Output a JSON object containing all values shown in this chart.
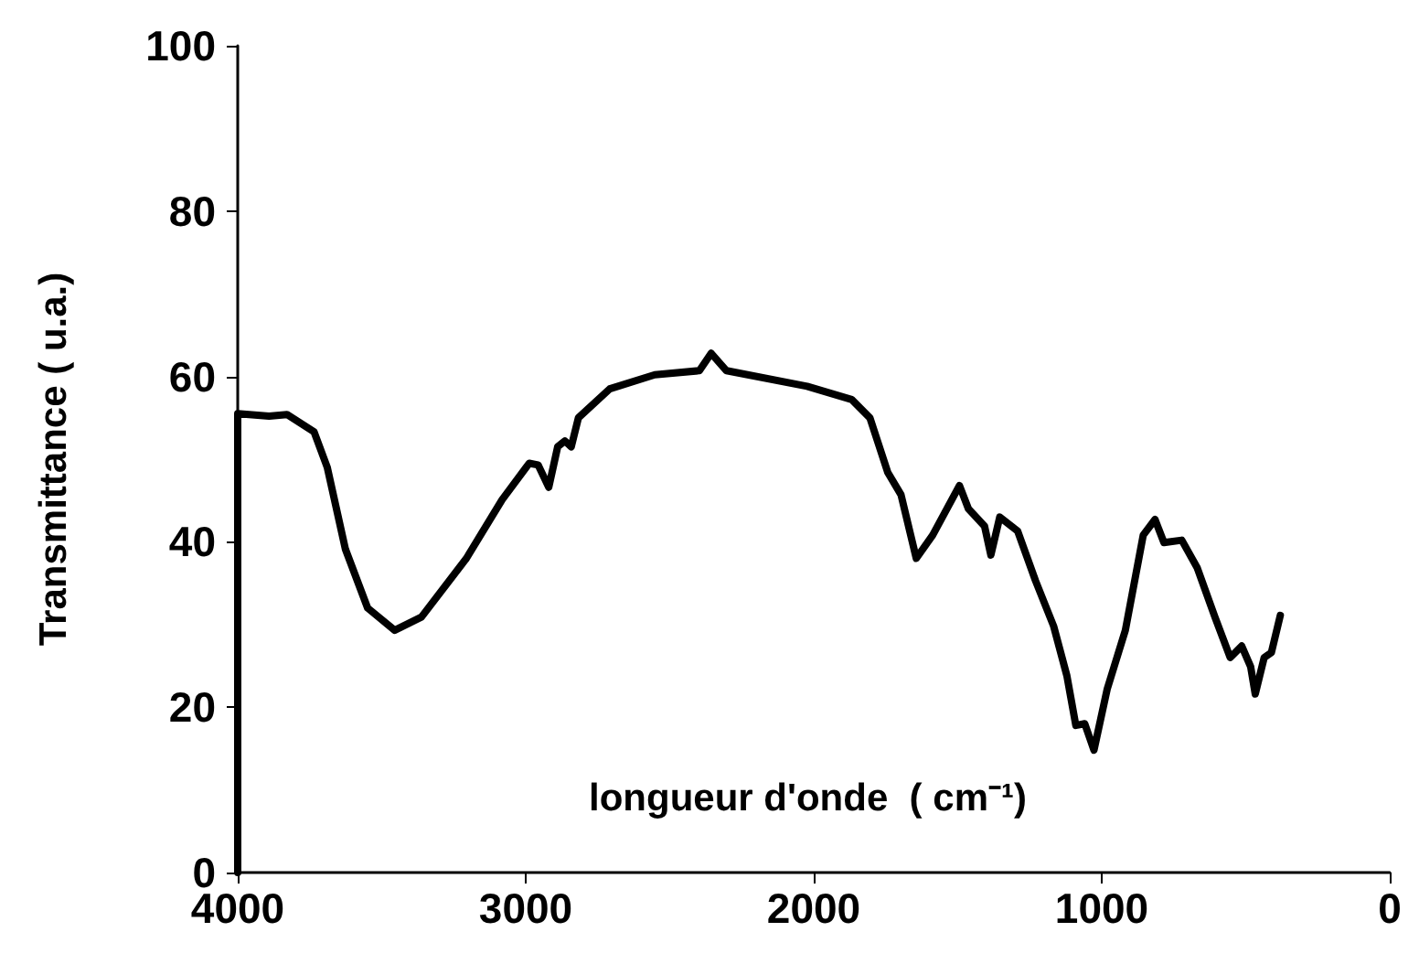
{
  "chart_data": {
    "type": "line",
    "xlabel": "longueur d'onde  ( cm⁻¹)",
    "ylabel": "Transmittance ( u.a.)",
    "x": [
      4000,
      4000,
      3891,
      3829,
      3735,
      3689,
      3626,
      3549,
      3455,
      3362,
      3206,
      3082,
      2988,
      2957,
      2920,
      2889,
      2864,
      2842,
      2817,
      2708,
      2552,
      2397,
      2356,
      2303,
      2023,
      1868,
      1805,
      1743,
      1697,
      1644,
      1587,
      1494,
      1463,
      1407,
      1385,
      1354,
      1292,
      1230,
      1167,
      1121,
      1090,
      1059,
      1027,
      981,
      918,
      856,
      815,
      784,
      722,
      669,
      607,
      554,
      514,
      483,
      467,
      436,
      411,
      380
    ],
    "values": [
      0,
      55.5,
      55.2,
      55.4,
      53.3,
      49,
      39.1,
      32,
      29.3,
      30.9,
      38,
      45.1,
      49.5,
      49.3,
      46.6,
      51.5,
      52.2,
      51.5,
      55,
      58.5,
      60.2,
      60.7,
      62.8,
      60.7,
      58.8,
      57.2,
      55,
      48.4,
      45.7,
      38,
      40.8,
      46.8,
      44,
      41.9,
      38.4,
      43,
      41.3,
      35.3,
      29.8,
      23.8,
      17.8,
      18,
      14.8,
      22.2,
      29.3,
      40.8,
      42.7,
      39.9,
      40.2,
      36.9,
      30.9,
      26,
      27.4,
      24.9,
      21.6,
      26,
      26.6,
      31.1
    ],
    "color": "#000000",
    "xlim": [
      4000,
      0
    ],
    "xticks": [
      4000,
      3000,
      2000,
      1000,
      0
    ],
    "ylim": [
      0,
      100
    ],
    "yticks": [
      0,
      20,
      40,
      60,
      80,
      100
    ],
    "grid": false,
    "marker": "none",
    "line_style": "solid"
  }
}
